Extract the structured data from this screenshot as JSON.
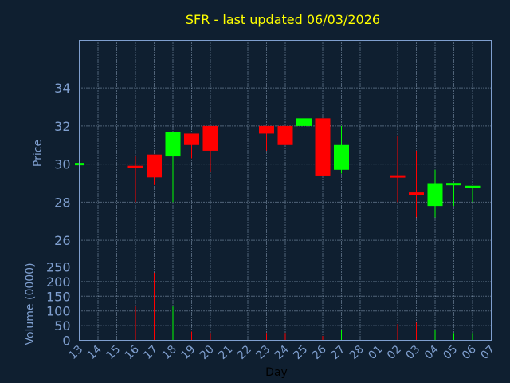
{
  "chart_data": {
    "type": "candlestick",
    "title": "SFR - last updated 06/03/2026",
    "xlabel": "Day",
    "colors": {
      "background": "#0f1f30",
      "axis": "#7f9fcf",
      "grid": "#9fb6cf",
      "title": "#ffff00",
      "up": "#00ff00",
      "down": "#ff0000",
      "xlabel": "#000000"
    },
    "price_panel": {
      "ylabel": "Price",
      "ylim": [
        24.6,
        36.5
      ],
      "yticks": [
        26,
        28,
        30,
        32,
        34
      ]
    },
    "volume_panel": {
      "ylabel": "Volume (0000)",
      "ylim": [
        0,
        250
      ],
      "yticks": [
        0,
        50,
        100,
        150,
        200,
        250
      ]
    },
    "x_ticks": [
      "13",
      "14",
      "15",
      "16",
      "17",
      "18",
      "19",
      "20",
      "21",
      "22",
      "23",
      "24",
      "25",
      "26",
      "27",
      "28",
      "01",
      "02",
      "03",
      "04",
      "05",
      "06",
      "07"
    ],
    "candles": [
      {
        "day": "13",
        "open": 30.0,
        "high": 30.0,
        "low": 30.0,
        "close": 30.0,
        "volume": 0
      },
      {
        "day": "16",
        "open": 29.9,
        "high": 30.4,
        "low": 28.0,
        "close": 29.8,
        "volume": 115
      },
      {
        "day": "17",
        "open": 30.5,
        "high": 30.5,
        "low": 28.9,
        "close": 29.3,
        "volume": 230
      },
      {
        "day": "18",
        "open": 30.4,
        "high": 31.7,
        "low": 28.0,
        "close": 31.7,
        "volume": 115
      },
      {
        "day": "19",
        "open": 31.6,
        "high": 31.6,
        "low": 30.3,
        "close": 31.0,
        "volume": 30
      },
      {
        "day": "20",
        "open": 32.0,
        "high": 32.0,
        "low": 29.6,
        "close": 30.7,
        "volume": 25
      },
      {
        "day": "23",
        "open": 32.0,
        "high": 32.0,
        "low": 30.7,
        "close": 31.6,
        "volume": 25
      },
      {
        "day": "24",
        "open": 32.0,
        "high": 32.0,
        "low": 31.0,
        "close": 31.0,
        "volume": 25
      },
      {
        "day": "25",
        "open": 32.0,
        "high": 33.0,
        "low": 31.0,
        "close": 32.4,
        "volume": 65
      },
      {
        "day": "26",
        "open": 32.4,
        "high": 32.4,
        "low": 29.4,
        "close": 29.4,
        "volume": 15
      },
      {
        "day": "27",
        "open": 29.7,
        "high": 32.0,
        "low": 29.5,
        "close": 31.0,
        "volume": 35
      },
      {
        "day": "02",
        "open": 29.4,
        "high": 31.5,
        "low": 28.0,
        "close": 29.3,
        "volume": 55
      },
      {
        "day": "03",
        "open": 28.5,
        "high": 30.7,
        "low": 27.2,
        "close": 28.4,
        "volume": 60
      },
      {
        "day": "04",
        "open": 27.8,
        "high": 29.7,
        "low": 27.2,
        "close": 29.0,
        "volume": 35
      },
      {
        "day": "05",
        "open": 28.9,
        "high": 29.0,
        "low": 27.8,
        "close": 29.0,
        "volume": 25
      },
      {
        "day": "06",
        "open": 28.8,
        "high": 28.8,
        "low": 28.0,
        "close": 28.8,
        "volume": 25
      }
    ]
  }
}
